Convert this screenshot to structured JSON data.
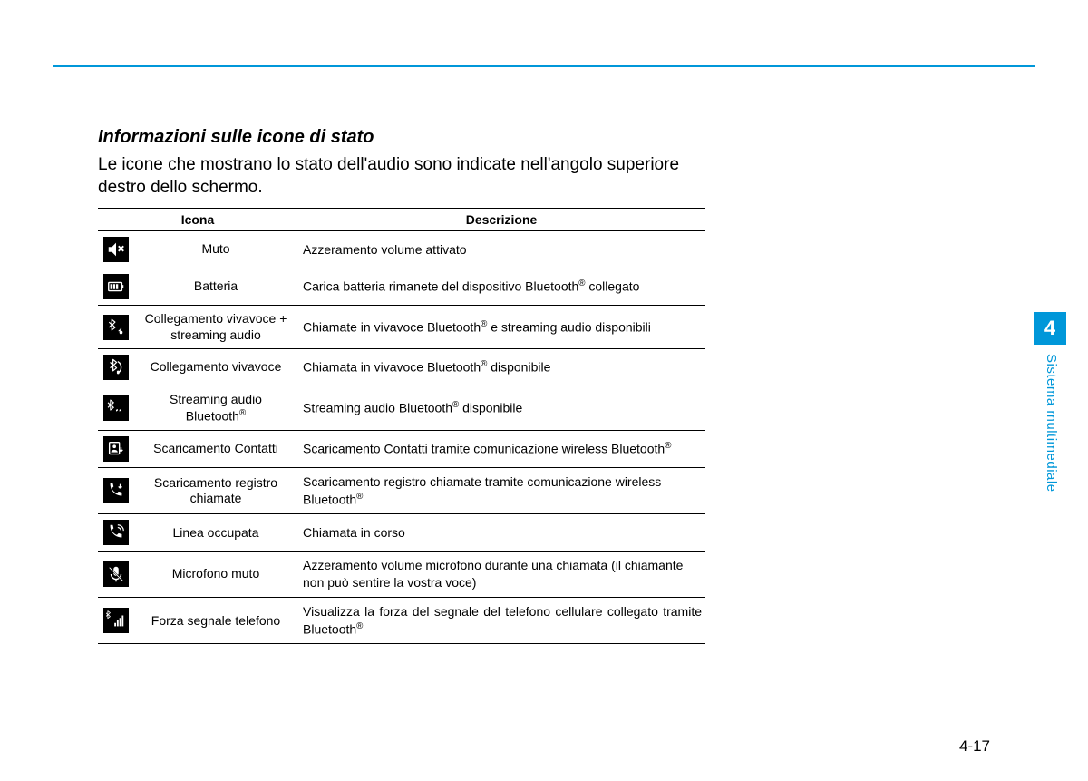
{
  "colors": {
    "accent": "#0097d9",
    "text": "#000000",
    "icon_bg": "#000000",
    "icon_fg": "#ffffff",
    "background": "#ffffff"
  },
  "chapter_tab": "4",
  "side_label": "Sistema multimediale",
  "page_number": "4-17",
  "title": "Informazioni sulle icone di stato",
  "intro": "Le icone che mostrano lo stato dell'audio sono indicate nell'angolo superiore destro dello schermo.",
  "table": {
    "header_icon": "Icona",
    "header_desc": "Descrizione",
    "rows": [
      {
        "icon": "mute",
        "label": "Muto",
        "desc": "Azzeramento volume attivato"
      },
      {
        "icon": "battery",
        "label": "Batteria",
        "desc": "Carica batteria rimanete del dispositivo Bluetooth® collegato"
      },
      {
        "icon": "bt-hf-audio",
        "label": "Collegamento vivavoce + streaming audio",
        "desc": "Chiamate in vivavoce Bluetooth® e streaming audio disponibili",
        "justify": true
      },
      {
        "icon": "bt-hf",
        "label": "Collegamento vivavoce",
        "desc": "Chiamata in vivavoce Bluetooth® disponibile"
      },
      {
        "icon": "bt-audio",
        "label": "Streaming audio Bluetooth®",
        "desc": "Streaming audio Bluetooth® disponibile"
      },
      {
        "icon": "contacts-dl",
        "label": "Scaricamento Contatti",
        "desc": "Scaricamento Contatti tramite comunicazione wireless Bluetooth®",
        "justify": true
      },
      {
        "icon": "calllog-dl",
        "label": "Scaricamento registro chiamate",
        "desc": "Scaricamento registro chiamate tramite comunicazione wireless Bluetooth®"
      },
      {
        "icon": "in-call",
        "label": "Linea occupata",
        "desc": "Chiamata in corso"
      },
      {
        "icon": "mic-mute",
        "label": "Microfono muto",
        "desc": "Azzeramento volume microfono durante una chiamata (il chiamante non può sentire la vostra voce)"
      },
      {
        "icon": "signal",
        "label": "Forza segnale telefono",
        "desc": "Visualizza la forza del segnale del telefono cellulare collegato tramite Bluetooth®",
        "justify": true
      }
    ]
  }
}
